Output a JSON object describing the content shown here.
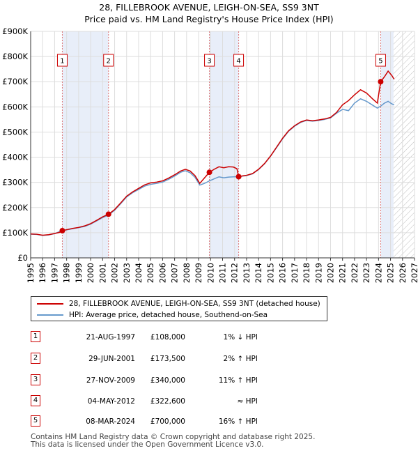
{
  "chart_data": {
    "type": "line",
    "title": "28, FILLEBROOK AVENUE, LEIGH-ON-SEA, SS9 3NT",
    "subtitle": "Price paid vs. HM Land Registry's House Price Index (HPI)",
    "xlim": [
      1995,
      2027
    ],
    "ylim": [
      0,
      900000
    ],
    "x_ticks": [
      "1995",
      "1996",
      "1997",
      "1998",
      "1999",
      "2000",
      "2001",
      "2002",
      "2003",
      "2004",
      "2005",
      "2006",
      "2007",
      "2008",
      "2009",
      "2010",
      "2011",
      "2012",
      "2013",
      "2014",
      "2015",
      "2016",
      "2017",
      "2018",
      "2019",
      "2020",
      "2021",
      "2022",
      "2023",
      "2024",
      "2025",
      "2026",
      "2027"
    ],
    "y_ticks": [
      {
        "value": 0,
        "label": "£0"
      },
      {
        "value": 100000,
        "label": "£100K"
      },
      {
        "value": 200000,
        "label": "£200K"
      },
      {
        "value": 300000,
        "label": "£300K"
      },
      {
        "value": 400000,
        "label": "£400K"
      },
      {
        "value": 500000,
        "label": "£500K"
      },
      {
        "value": 600000,
        "label": "£600K"
      },
      {
        "value": 700000,
        "label": "£700K"
      },
      {
        "value": 800000,
        "label": "£800K"
      },
      {
        "value": 900000,
        "label": "£900K"
      }
    ],
    "forecast_start": 2025.25,
    "series": [
      {
        "name": "28, FILLEBROOK AVENUE, LEIGH-ON-SEA, SS9 3NT (detached house)",
        "color": "#cc0000",
        "points": [
          [
            1995.0,
            95000
          ],
          [
            1995.5,
            94000
          ],
          [
            1996.0,
            90000
          ],
          [
            1996.5,
            92000
          ],
          [
            1997.0,
            97000
          ],
          [
            1997.4,
            101000
          ],
          [
            1997.64,
            108000
          ],
          [
            1998.0,
            112000
          ],
          [
            1998.5,
            117000
          ],
          [
            1999.0,
            121000
          ],
          [
            1999.5,
            127000
          ],
          [
            2000.0,
            136000
          ],
          [
            2000.5,
            149000
          ],
          [
            2001.0,
            163000
          ],
          [
            2001.49,
            173500
          ],
          [
            2002.0,
            192000
          ],
          [
            2002.5,
            218000
          ],
          [
            2003.0,
            245000
          ],
          [
            2003.5,
            262000
          ],
          [
            2004.0,
            276000
          ],
          [
            2004.5,
            290000
          ],
          [
            2005.0,
            298000
          ],
          [
            2005.5,
            301000
          ],
          [
            2006.0,
            306000
          ],
          [
            2006.5,
            317000
          ],
          [
            2007.0,
            330000
          ],
          [
            2007.5,
            345000
          ],
          [
            2007.9,
            352000
          ],
          [
            2008.3,
            345000
          ],
          [
            2008.7,
            327000
          ],
          [
            2009.1,
            296000
          ],
          [
            2009.5,
            318000
          ],
          [
            2009.9,
            340000
          ],
          [
            2010.3,
            352000
          ],
          [
            2010.7,
            362000
          ],
          [
            2011.1,
            358000
          ],
          [
            2011.5,
            362000
          ],
          [
            2011.9,
            361000
          ],
          [
            2012.2,
            354000
          ],
          [
            2012.34,
            322600
          ],
          [
            2012.7,
            326000
          ],
          [
            2013.0,
            328000
          ],
          [
            2013.5,
            335000
          ],
          [
            2014.0,
            352000
          ],
          [
            2014.5,
            375000
          ],
          [
            2015.0,
            405000
          ],
          [
            2015.5,
            440000
          ],
          [
            2016.0,
            475000
          ],
          [
            2016.5,
            505000
          ],
          [
            2017.0,
            525000
          ],
          [
            2017.5,
            540000
          ],
          [
            2018.0,
            548000
          ],
          [
            2018.5,
            545000
          ],
          [
            2019.0,
            548000
          ],
          [
            2019.5,
            552000
          ],
          [
            2020.0,
            558000
          ],
          [
            2020.5,
            578000
          ],
          [
            2021.0,
            608000
          ],
          [
            2021.5,
            625000
          ],
          [
            2022.0,
            648000
          ],
          [
            2022.5,
            668000
          ],
          [
            2023.0,
            655000
          ],
          [
            2023.5,
            632000
          ],
          [
            2023.9,
            615000
          ],
          [
            2024.18,
            700000
          ],
          [
            2024.5,
            720000
          ],
          [
            2024.8,
            742000
          ],
          [
            2025.1,
            725000
          ],
          [
            2025.3,
            710000
          ]
        ]
      },
      {
        "name": "HPI: Average price, detached house, Southend-on-Sea",
        "color": "#6699cc",
        "points": [
          [
            1995.0,
            94000
          ],
          [
            1995.5,
            93000
          ],
          [
            1996.0,
            89000
          ],
          [
            1996.5,
            91000
          ],
          [
            1997.0,
            96000
          ],
          [
            1997.64,
            109000
          ],
          [
            1998.0,
            111000
          ],
          [
            1998.5,
            116000
          ],
          [
            1999.0,
            120000
          ],
          [
            1999.5,
            125000
          ],
          [
            2000.0,
            134000
          ],
          [
            2000.5,
            147000
          ],
          [
            2001.0,
            160000
          ],
          [
            2001.49,
            170000
          ],
          [
            2002.0,
            189000
          ],
          [
            2002.5,
            215000
          ],
          [
            2003.0,
            242000
          ],
          [
            2003.5,
            259000
          ],
          [
            2004.0,
            272000
          ],
          [
            2004.5,
            285000
          ],
          [
            2005.0,
            292000
          ],
          [
            2005.5,
            296000
          ],
          [
            2006.0,
            301000
          ],
          [
            2006.5,
            312000
          ],
          [
            2007.0,
            325000
          ],
          [
            2007.5,
            340000
          ],
          [
            2007.9,
            346000
          ],
          [
            2008.3,
            338000
          ],
          [
            2008.7,
            320000
          ],
          [
            2009.1,
            289000
          ],
          [
            2009.5,
            296000
          ],
          [
            2009.9,
            306000
          ],
          [
            2010.3,
            314000
          ],
          [
            2010.7,
            322000
          ],
          [
            2011.1,
            318000
          ],
          [
            2011.5,
            321000
          ],
          [
            2011.9,
            322000
          ],
          [
            2012.34,
            323000
          ],
          [
            2012.7,
            325000
          ],
          [
            2013.0,
            327000
          ],
          [
            2013.5,
            334000
          ],
          [
            2014.0,
            351000
          ],
          [
            2014.5,
            374000
          ],
          [
            2015.0,
            404000
          ],
          [
            2015.5,
            438000
          ],
          [
            2016.0,
            473000
          ],
          [
            2016.5,
            503000
          ],
          [
            2017.0,
            523000
          ],
          [
            2017.5,
            538000
          ],
          [
            2018.0,
            546000
          ],
          [
            2018.5,
            543000
          ],
          [
            2019.0,
            546000
          ],
          [
            2019.5,
            550000
          ],
          [
            2020.0,
            556000
          ],
          [
            2020.5,
            575000
          ],
          [
            2021.0,
            590000
          ],
          [
            2021.5,
            585000
          ],
          [
            2022.0,
            615000
          ],
          [
            2022.5,
            632000
          ],
          [
            2023.0,
            622000
          ],
          [
            2023.5,
            607000
          ],
          [
            2023.9,
            595000
          ],
          [
            2024.18,
            603000
          ],
          [
            2024.5,
            615000
          ],
          [
            2024.8,
            622000
          ],
          [
            2025.1,
            612000
          ],
          [
            2025.3,
            608000
          ]
        ]
      }
    ],
    "sales": [
      {
        "n": "1",
        "x": 1997.64,
        "price": 108000
      },
      {
        "n": "2",
        "x": 2001.49,
        "price": 173500
      },
      {
        "n": "3",
        "x": 2009.9,
        "price": 340000
      },
      {
        "n": "4",
        "x": 2012.34,
        "price": 322600
      },
      {
        "n": "5",
        "x": 2024.18,
        "price": 700000
      }
    ],
    "shaded_ranges": [
      [
        1997.64,
        2001.49
      ],
      [
        2009.9,
        2012.34
      ],
      [
        2024.18,
        2025.25
      ]
    ]
  },
  "legend": {
    "property_label": "28, FILLEBROOK AVENUE, LEIGH-ON-SEA, SS9 3NT (detached house)",
    "property_color": "#cc0000",
    "hpi_label": "HPI: Average price, detached house, Southend-on-Sea",
    "hpi_color": "#6699cc"
  },
  "sales_table": [
    {
      "n": "1",
      "date": "21-AUG-1997",
      "price": "£108,000",
      "relation": "1% ↓ HPI"
    },
    {
      "n": "2",
      "date": "29-JUN-2001",
      "price": "£173,500",
      "relation": "2% ↑ HPI"
    },
    {
      "n": "3",
      "date": "27-NOV-2009",
      "price": "£340,000",
      "relation": "11% ↑ HPI"
    },
    {
      "n": "4",
      "date": "04-MAY-2012",
      "price": "£322,600",
      "relation": "≈ HPI"
    },
    {
      "n": "5",
      "date": "08-MAR-2024",
      "price": "£700,000",
      "relation": "16% ↑ HPI"
    }
  ],
  "footer": {
    "line1": "Contains HM Land Registry data © Crown copyright and database right 2025.",
    "line2": "This data is licensed under the Open Government Licence v3.0."
  }
}
